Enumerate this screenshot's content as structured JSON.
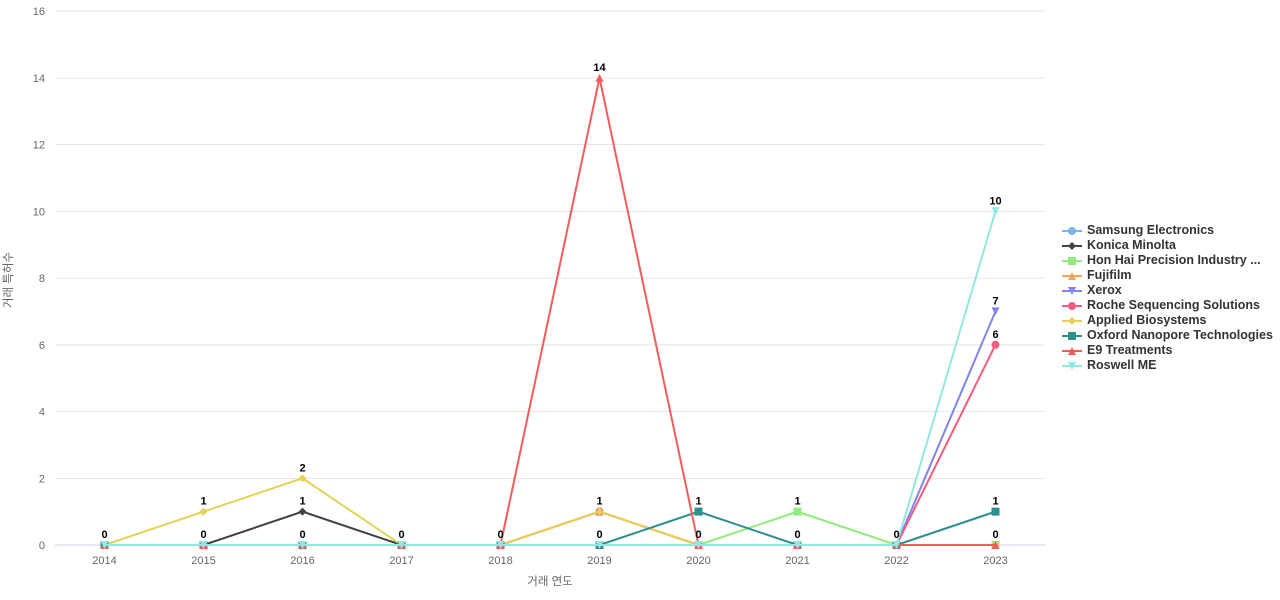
{
  "chart_data": {
    "type": "line",
    "title": "",
    "xlabel": "거래 연도",
    "ylabel": "거래 특허수",
    "categories": [
      "2014",
      "2015",
      "2016",
      "2017",
      "2018",
      "2019",
      "2020",
      "2021",
      "2022",
      "2023"
    ],
    "ylim": [
      0,
      16
    ],
    "ytick_step": 2,
    "grid": true,
    "legend_position": "right",
    "colors": {
      "grid_color": "#e6e6e6",
      "axis_line_color": "#ccd6eb",
      "axis_label_color": "#666666",
      "data_label_color": "#000000",
      "legend_text_color": "#333333"
    },
    "series": [
      {
        "name": "Samsung Electronics",
        "color": "#7cb5ec",
        "marker": "circle",
        "values": [
          0,
          0,
          0,
          0,
          0,
          0,
          0,
          0,
          0,
          0
        ]
      },
      {
        "name": "Konica Minolta",
        "color": "#434348",
        "marker": "diamond",
        "values": [
          0,
          0,
          1,
          0,
          0,
          0,
          0,
          0,
          0,
          0
        ]
      },
      {
        "name": "Hon Hai Precision Industry ...",
        "color": "#90ed7d",
        "marker": "square",
        "values": [
          0,
          0,
          0,
          0,
          0,
          0,
          0,
          1,
          0,
          0
        ]
      },
      {
        "name": "Fujifilm",
        "color": "#f7a35c",
        "marker": "triangle",
        "values": [
          0,
          0,
          0,
          0,
          0,
          1,
          0,
          0,
          0,
          0
        ]
      },
      {
        "name": "Xerox",
        "color": "#8085e9",
        "marker": "triangle-down",
        "values": [
          0,
          0,
          0,
          0,
          0,
          0,
          0,
          0,
          0,
          7
        ]
      },
      {
        "name": "Roche Sequencing Solutions",
        "color": "#f15c80",
        "marker": "circle",
        "values": [
          0,
          0,
          0,
          0,
          0,
          1,
          0,
          0,
          0,
          6
        ]
      },
      {
        "name": "Applied Biosystems",
        "color": "#e4d354",
        "marker": "diamond",
        "values": [
          0,
          1,
          2,
          0,
          0,
          1,
          0,
          0,
          0,
          0
        ]
      },
      {
        "name": "Oxford Nanopore Technologies",
        "color": "#2b908f",
        "marker": "square",
        "values": [
          0,
          0,
          0,
          0,
          0,
          0,
          1,
          0,
          0,
          1
        ]
      },
      {
        "name": "E9 Treatments",
        "color": "#f45b5b",
        "marker": "triangle",
        "values": [
          0,
          0,
          0,
          0,
          0,
          14,
          0,
          0,
          0,
          0
        ]
      },
      {
        "name": "Roswell ME",
        "color": "#91e8e1",
        "marker": "triangle-down",
        "values": [
          0,
          0,
          0,
          0,
          0,
          0,
          0,
          0,
          0,
          10
        ]
      }
    ],
    "point_labels": [
      {
        "year": "2014",
        "value": 0
      },
      {
        "year": "2015",
        "value": 1
      },
      {
        "year": "2015",
        "value": 0
      },
      {
        "year": "2016",
        "value": 2
      },
      {
        "year": "2016",
        "value": 1
      },
      {
        "year": "2016",
        "value": 0
      },
      {
        "year": "2017",
        "value": 0
      },
      {
        "year": "2018",
        "value": 0
      },
      {
        "year": "2019",
        "value": 14
      },
      {
        "year": "2019",
        "value": 1
      },
      {
        "year": "2019",
        "value": 0
      },
      {
        "year": "2020",
        "value": 1
      },
      {
        "year": "2020",
        "value": 0
      },
      {
        "year": "2021",
        "value": 1
      },
      {
        "year": "2021",
        "value": 0
      },
      {
        "year": "2022",
        "value": 0
      },
      {
        "year": "2023",
        "value": 10
      },
      {
        "year": "2023",
        "value": 7
      },
      {
        "year": "2023",
        "value": 6
      },
      {
        "year": "2023",
        "value": 1
      },
      {
        "year": "2023",
        "value": 0
      }
    ]
  }
}
